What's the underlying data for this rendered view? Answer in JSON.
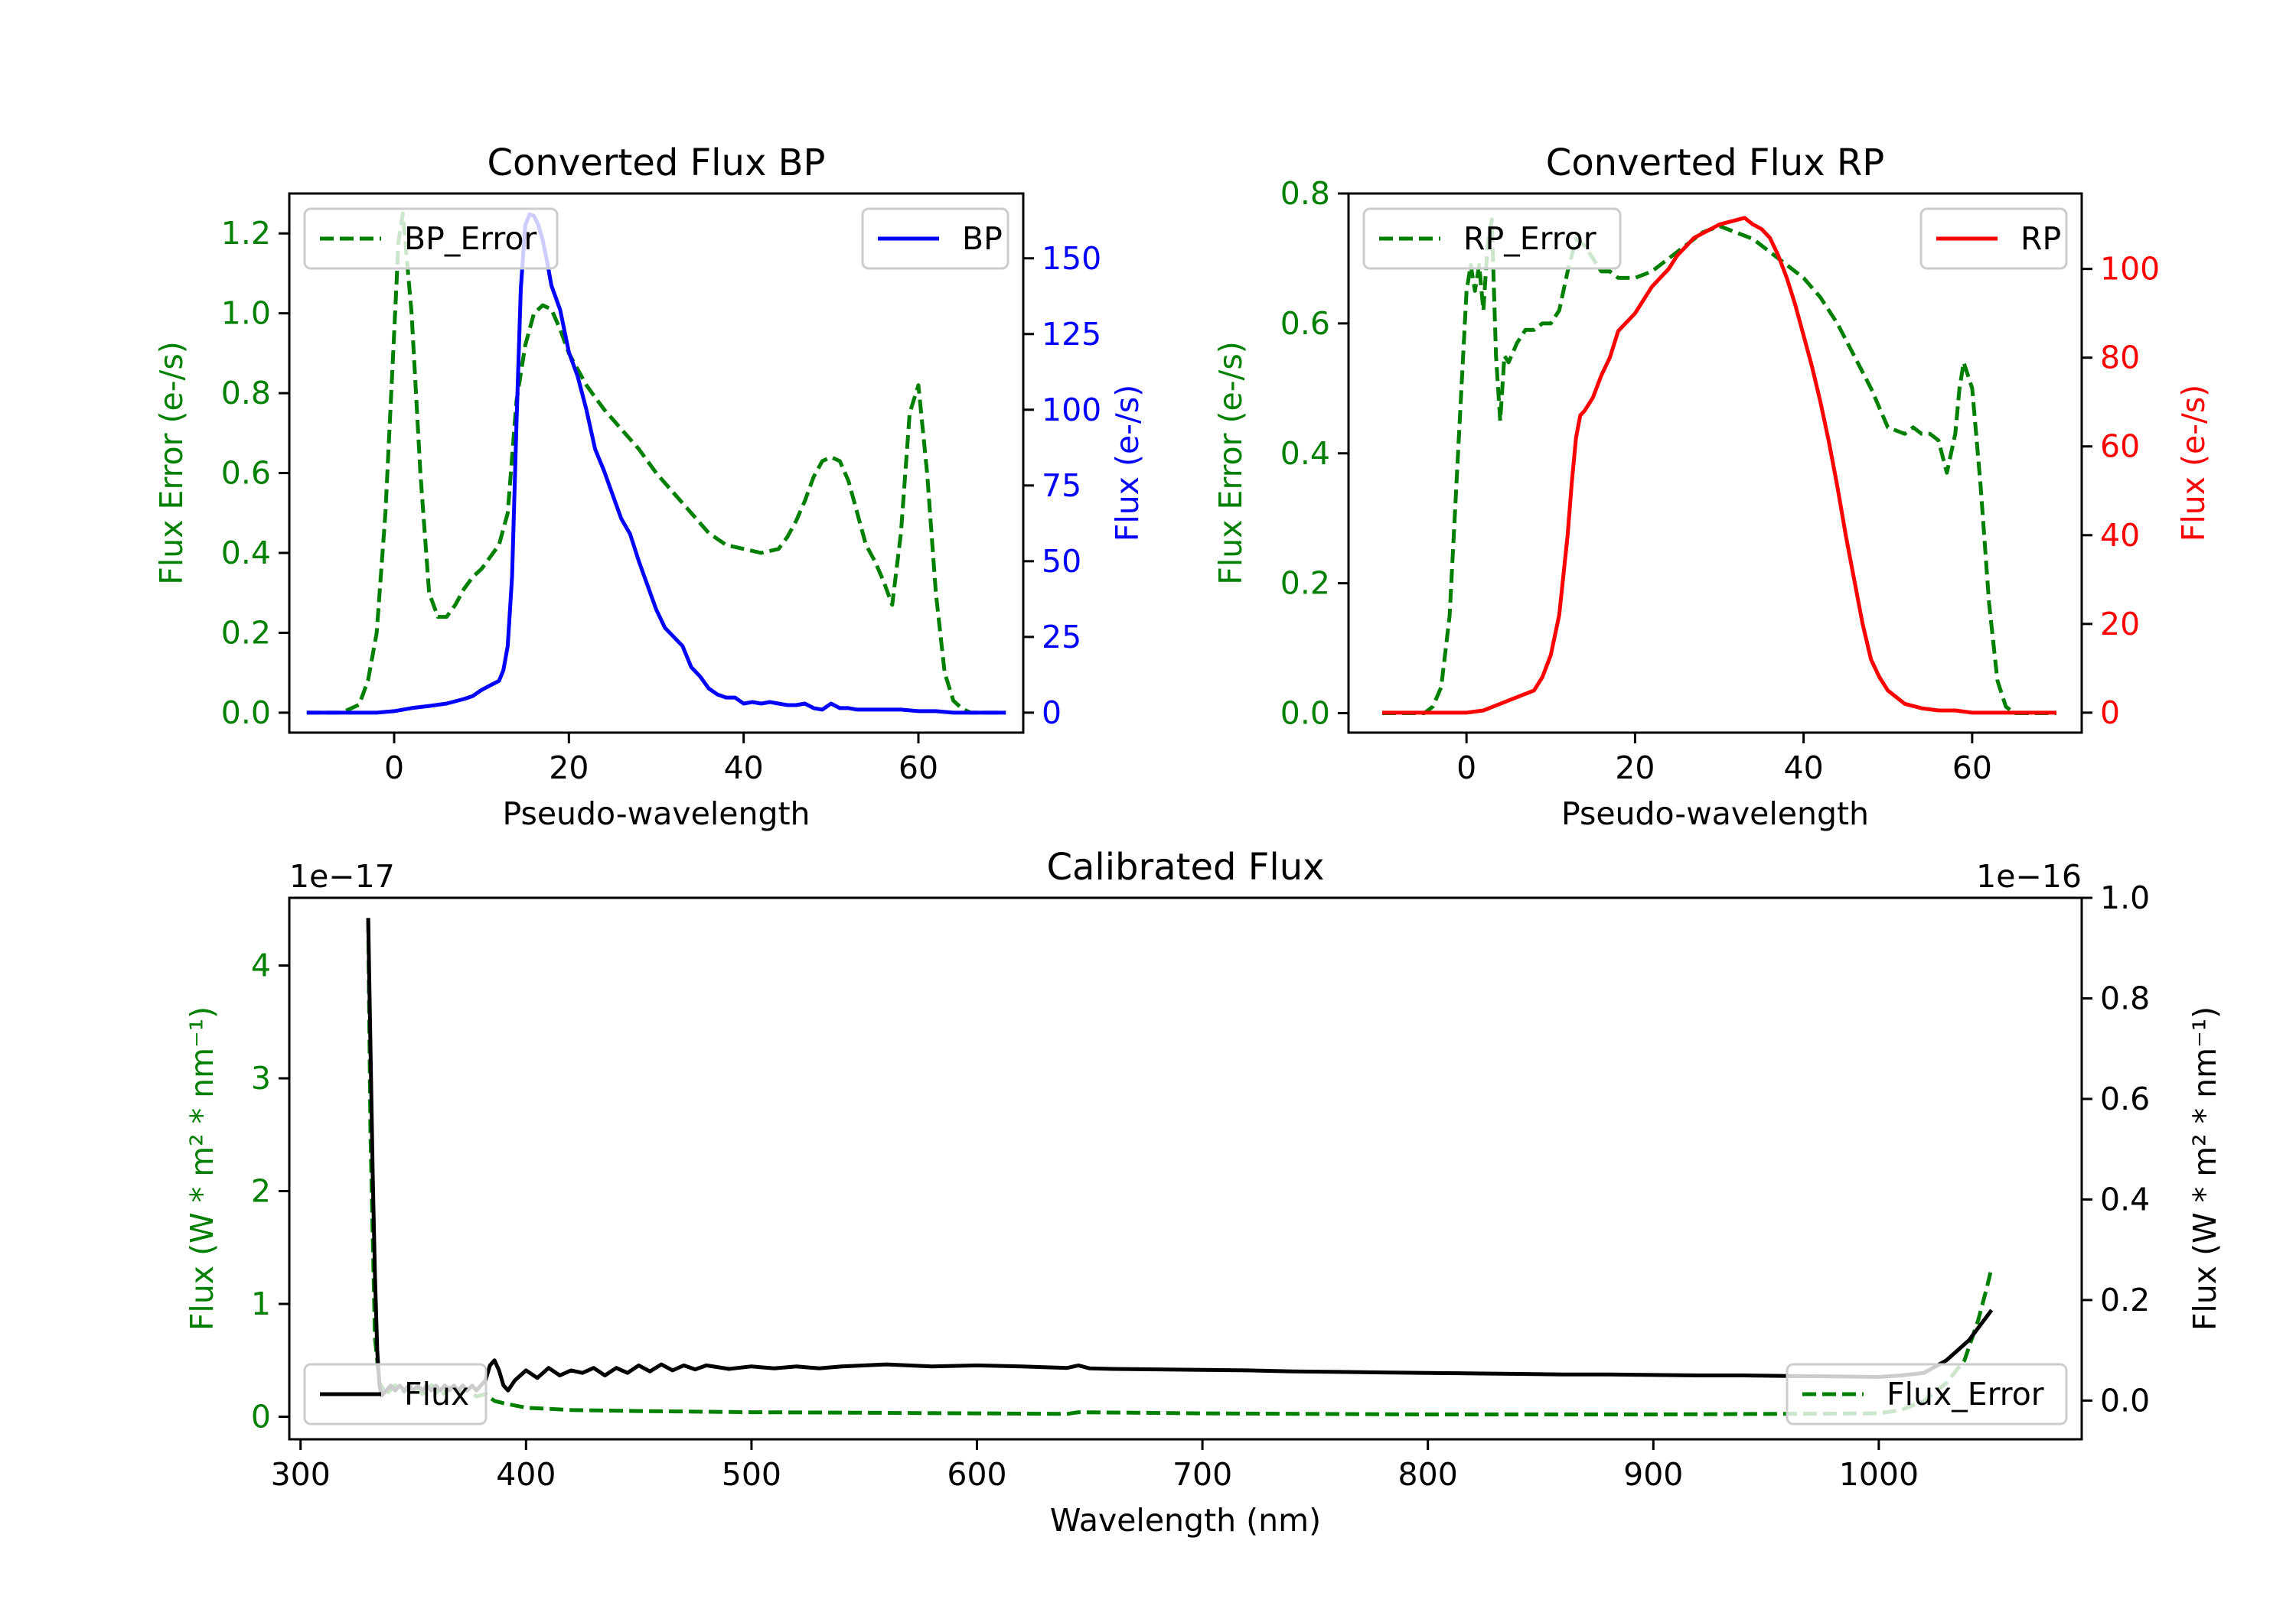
{
  "colors": {
    "error": "#008000",
    "bp": "#0000ff",
    "rp": "#ff0000",
    "flux": "#000000",
    "axis": "#000000"
  },
  "chart_data": [
    {
      "id": "bp",
      "type": "line",
      "title": "Converted Flux BP",
      "xlabel": "Pseudo-wavelength",
      "ylabel_left": "Flux Error (e-/s)",
      "ylabel_right": "Flux (e-/s)",
      "xlim": [
        -12,
        72
      ],
      "ylim_left": [
        -0.05,
        1.3
      ],
      "ylim_right": [
        -6.6,
        171.4
      ],
      "xticks": [
        0,
        20,
        40,
        60
      ],
      "yticks_left": [
        0.0,
        0.2,
        0.4,
        0.6,
        0.8,
        1.0,
        1.2
      ],
      "ytick_labels_left": [
        "0.0",
        "0.2",
        "0.4",
        "0.6",
        "0.8",
        "1.0",
        "1.2"
      ],
      "yticks_right": [
        0,
        25,
        50,
        75,
        100,
        125,
        150
      ],
      "ytick_labels_right": [
        "0",
        "25",
        "50",
        "75",
        "100",
        "125",
        "150"
      ],
      "legend_left": {
        "label": "BP_Error",
        "location": "upper left"
      },
      "legend_right": {
        "label": "BP",
        "location": "upper right"
      },
      "series": [
        {
          "name": "BP_Error",
          "axis": "left",
          "style": "dashed",
          "color": "#008000",
          "x": [
            -10,
            -6,
            -4,
            -3,
            -2,
            -1,
            0,
            0.5,
            1,
            2,
            3,
            4,
            5,
            6,
            7,
            8,
            9,
            10,
            11,
            12,
            13,
            14,
            15,
            16,
            17,
            18,
            19,
            20,
            22,
            24,
            26,
            28,
            30,
            32,
            34,
            36,
            38,
            40,
            42,
            44,
            45,
            46,
            47,
            48,
            49,
            50,
            51,
            52,
            53,
            54,
            55,
            56,
            57,
            58,
            59,
            60,
            61,
            62,
            63,
            64,
            65,
            66,
            67,
            70
          ],
          "y": [
            0,
            0,
            0.02,
            0.08,
            0.2,
            0.5,
            0.95,
            1.18,
            1.25,
            1.0,
            0.6,
            0.3,
            0.24,
            0.24,
            0.27,
            0.31,
            0.34,
            0.36,
            0.39,
            0.42,
            0.5,
            0.78,
            0.92,
            1.0,
            1.02,
            1.01,
            0.96,
            0.9,
            0.82,
            0.76,
            0.71,
            0.66,
            0.6,
            0.55,
            0.5,
            0.45,
            0.42,
            0.41,
            0.4,
            0.41,
            0.44,
            0.48,
            0.53,
            0.59,
            0.63,
            0.64,
            0.63,
            0.58,
            0.5,
            0.42,
            0.38,
            0.33,
            0.27,
            0.45,
            0.75,
            0.82,
            0.6,
            0.3,
            0.1,
            0.03,
            0.01,
            0,
            0,
            0
          ]
        },
        {
          "name": "BP",
          "axis": "right",
          "style": "solid",
          "color": "#0000ff",
          "x": [
            -10,
            -6,
            -2,
            0,
            2,
            4,
            6,
            8,
            9,
            10,
            11,
            12,
            12.5,
            13,
            13.5,
            14,
            14.5,
            15,
            15.5,
            16,
            16.5,
            17,
            17.5,
            18,
            19,
            20,
            21,
            22,
            23,
            24,
            25,
            26,
            27,
            28,
            29,
            30,
            31,
            32,
            33,
            34,
            35,
            36,
            37,
            38,
            39,
            40,
            41,
            42,
            43,
            44,
            45,
            46,
            47,
            48,
            49,
            50,
            51,
            52,
            53,
            54,
            56,
            58,
            60,
            62,
            64,
            66,
            70
          ],
          "y": [
            0,
            0,
            0,
            0.5,
            1.5,
            2.2,
            3,
            4.5,
            5.5,
            7.5,
            9,
            10.5,
            14,
            22,
            45,
            95,
            140,
            161,
            164.5,
            164,
            161,
            156,
            149,
            141,
            133,
            119,
            111,
            100,
            87,
            80,
            72,
            64,
            59,
            50,
            42,
            34,
            28,
            25,
            22,
            15,
            12,
            8,
            6,
            5,
            5,
            3,
            3.5,
            3,
            3.5,
            3,
            2.5,
            2.5,
            3,
            1.5,
            1,
            3,
            1.5,
            1.5,
            1,
            1,
            1,
            1,
            0.5,
            0.5,
            0,
            0,
            0
          ]
        }
      ]
    },
    {
      "id": "rp",
      "type": "line",
      "title": "Converted Flux RP",
      "xlabel": "Pseudo-wavelength",
      "ylabel_left": "Flux Error (e-/s)",
      "ylabel_right": "Flux (e-/s)",
      "xlim": [
        -14,
        73
      ],
      "ylim_left": [
        -0.03,
        0.8
      ],
      "ylim_right": [
        -4.5,
        117
      ],
      "xticks": [
        0,
        20,
        40,
        60
      ],
      "yticks_left": [
        0.0,
        0.2,
        0.4,
        0.6,
        0.8
      ],
      "ytick_labels_left": [
        "0.0",
        "0.2",
        "0.4",
        "0.6",
        "0.8"
      ],
      "yticks_right": [
        0,
        20,
        40,
        60,
        80,
        100
      ],
      "ytick_labels_right": [
        "0",
        "20",
        "40",
        "60",
        "80",
        "100"
      ],
      "legend_left": {
        "label": "RP_Error",
        "location": "upper left"
      },
      "legend_right": {
        "label": "RP",
        "location": "upper right"
      },
      "series": [
        {
          "name": "RP_Error",
          "axis": "left",
          "style": "dashed",
          "color": "#008000",
          "x": [
            -10,
            -5,
            -4,
            -3,
            -2,
            -1,
            0,
            0.5,
            1,
            1.5,
            2,
            2.5,
            3,
            3.5,
            4,
            4.5,
            5,
            6,
            7,
            8,
            9,
            10,
            11,
            12,
            13,
            14,
            15,
            16,
            17,
            18,
            19,
            20,
            22,
            24,
            26,
            28,
            30,
            32,
            34,
            36,
            38,
            40,
            42,
            44,
            46,
            48,
            50,
            52,
            53,
            54,
            55,
            56,
            57,
            58,
            58.5,
            59,
            60,
            61,
            62,
            63,
            64,
            65,
            70
          ],
          "y": [
            0,
            0,
            0.01,
            0.04,
            0.15,
            0.4,
            0.65,
            0.69,
            0.65,
            0.69,
            0.62,
            0.72,
            0.76,
            0.55,
            0.45,
            0.55,
            0.54,
            0.57,
            0.59,
            0.59,
            0.6,
            0.6,
            0.62,
            0.68,
            0.73,
            0.72,
            0.7,
            0.68,
            0.68,
            0.67,
            0.67,
            0.67,
            0.68,
            0.7,
            0.72,
            0.74,
            0.75,
            0.74,
            0.73,
            0.71,
            0.69,
            0.67,
            0.64,
            0.6,
            0.55,
            0.5,
            0.44,
            0.43,
            0.44,
            0.43,
            0.43,
            0.42,
            0.37,
            0.43,
            0.5,
            0.54,
            0.5,
            0.35,
            0.17,
            0.05,
            0.01,
            0,
            0
          ]
        },
        {
          "name": "RP",
          "axis": "right",
          "style": "solid",
          "color": "#ff0000",
          "x": [
            -10,
            -4,
            0,
            2,
            4,
            6,
            8,
            9,
            10,
            11,
            12,
            12.5,
            13,
            13.5,
            14,
            15,
            16,
            17,
            18,
            19,
            20,
            21,
            22,
            23,
            24,
            25,
            26,
            27,
            28,
            29,
            30,
            31,
            32,
            33,
            34,
            35,
            36,
            37,
            38,
            39,
            40,
            41,
            42,
            43,
            44,
            45,
            46,
            47,
            48,
            49,
            50,
            52,
            54,
            56,
            58,
            60,
            62,
            64,
            66,
            70
          ],
          "y": [
            0,
            0,
            0,
            0.5,
            2,
            3.5,
            5,
            8,
            13,
            22,
            40,
            52,
            62,
            67,
            68,
            71,
            76,
            80,
            86,
            88,
            90,
            93,
            96,
            98,
            100,
            103,
            105,
            107,
            108,
            109,
            110,
            110.5,
            111,
            111.5,
            110,
            109,
            107,
            103,
            98,
            92,
            85,
            78,
            70,
            61,
            51,
            40,
            30,
            20,
            12,
            8,
            5,
            2,
            1,
            0.5,
            0.5,
            0,
            0,
            0,
            0,
            0
          ]
        }
      ]
    },
    {
      "id": "cal",
      "type": "line",
      "title": "Calibrated Flux",
      "xlabel": "Wavelength (nm)",
      "ylabel_left": "Flux (W * m² * nm⁻¹)",
      "ylabel_right": "Flux (W * m² * nm⁻¹)",
      "offset_left": "1e−17",
      "offset_right": "1e−16",
      "xlim": [
        295,
        1090
      ],
      "ylim_left": [
        -0.2,
        4.6
      ],
      "ylim_right": [
        -0.077,
        1.0
      ],
      "xticks": [
        300,
        400,
        500,
        600,
        700,
        800,
        900,
        1000
      ],
      "yticks_left": [
        0,
        1,
        2,
        3,
        4
      ],
      "ytick_labels_left": [
        "0",
        "1",
        "2",
        "3",
        "4"
      ],
      "yticks_right": [
        0.0,
        0.2,
        0.4,
        0.6,
        0.8,
        1.0
      ],
      "ytick_labels_right": [
        "0.0",
        "0.2",
        "0.4",
        "0.6",
        "0.8",
        "1.0"
      ],
      "legend_left": {
        "label": "Flux",
        "location": "lower left"
      },
      "legend_right": {
        "label": "Flux_Error",
        "location": "lower right"
      },
      "series": [
        {
          "name": "Flux_Error",
          "axis": "left",
          "style": "dashed",
          "color": "#008000",
          "x": [
            330,
            331,
            333,
            335,
            338,
            342,
            346,
            350,
            354,
            358,
            362,
            366,
            370,
            374,
            378,
            382,
            386,
            390,
            400,
            420,
            450,
            500,
            550,
            600,
            640,
            645,
            700,
            800,
            900,
            1000,
            1010,
            1020,
            1030,
            1038,
            1044,
            1048,
            1050
          ],
          "y": [
            4.4,
            2.5,
            0.7,
            0.3,
            0.2,
            0.28,
            0.22,
            0.3,
            0.2,
            0.28,
            0.18,
            0.26,
            0.2,
            0.24,
            0.18,
            0.2,
            0.14,
            0.12,
            0.08,
            0.06,
            0.05,
            0.04,
            0.035,
            0.03,
            0.025,
            0.04,
            0.03,
            0.02,
            0.02,
            0.03,
            0.06,
            0.14,
            0.3,
            0.5,
            0.85,
            1.15,
            1.32
          ]
        },
        {
          "name": "Flux",
          "axis": "right",
          "style": "solid",
          "color": "#000000",
          "x": [
            330,
            331,
            332,
            333,
            334,
            335,
            336,
            338,
            340,
            342,
            344,
            346,
            348,
            350,
            352,
            354,
            356,
            358,
            360,
            362,
            364,
            366,
            368,
            370,
            372,
            374,
            376,
            378,
            380,
            382,
            384,
            386,
            388,
            390,
            392,
            395,
            400,
            405,
            410,
            415,
            420,
            425,
            430,
            435,
            440,
            445,
            450,
            455,
            460,
            465,
            470,
            475,
            480,
            490,
            500,
            510,
            520,
            530,
            540,
            560,
            580,
            600,
            620,
            640,
            645,
            650,
            660,
            680,
            700,
            720,
            740,
            760,
            780,
            800,
            820,
            840,
            860,
            880,
            900,
            920,
            940,
            960,
            980,
            1000,
            1010,
            1020,
            1030,
            1040,
            1050
          ],
          "y": [
            0.96,
            0.7,
            0.45,
            0.25,
            0.1,
            0.03,
            0.01,
            0.02,
            0.03,
            0.02,
            0.03,
            0.02,
            0.03,
            0.02,
            0.03,
            0.02,
            0.03,
            0.02,
            0.03,
            0.02,
            0.03,
            0.02,
            0.03,
            0.02,
            0.03,
            0.02,
            0.03,
            0.02,
            0.03,
            0.04,
            0.07,
            0.08,
            0.06,
            0.03,
            0.02,
            0.04,
            0.06,
            0.045,
            0.065,
            0.05,
            0.06,
            0.055,
            0.065,
            0.05,
            0.065,
            0.055,
            0.07,
            0.058,
            0.072,
            0.06,
            0.07,
            0.062,
            0.07,
            0.063,
            0.068,
            0.064,
            0.068,
            0.064,
            0.068,
            0.072,
            0.068,
            0.07,
            0.068,
            0.065,
            0.07,
            0.064,
            0.063,
            0.062,
            0.061,
            0.06,
            0.058,
            0.057,
            0.056,
            0.055,
            0.054,
            0.053,
            0.052,
            0.052,
            0.051,
            0.05,
            0.05,
            0.049,
            0.048,
            0.047,
            0.05,
            0.055,
            0.08,
            0.12,
            0.18
          ]
        }
      ]
    }
  ]
}
